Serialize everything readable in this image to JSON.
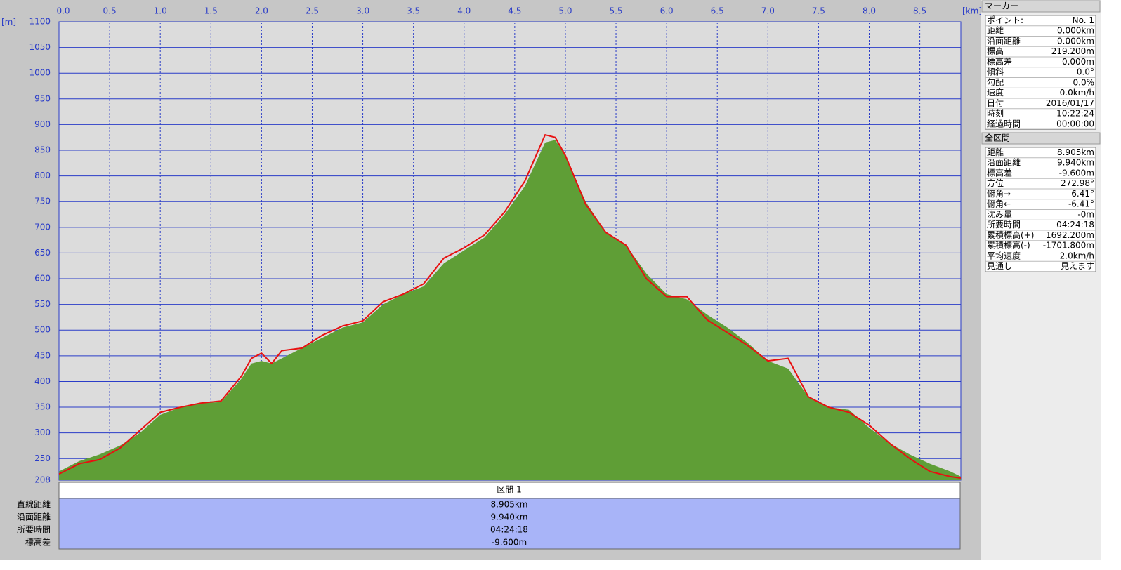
{
  "chart_data": {
    "type": "line",
    "y_label": "[m]",
    "x_label": "[km]",
    "x": [
      0,
      0.2,
      0.4,
      0.6,
      0.8,
      1.0,
      1.2,
      1.4,
      1.6,
      1.8,
      1.9,
      2.0,
      2.1,
      2.2,
      2.4,
      2.6,
      2.8,
      3.0,
      3.2,
      3.4,
      3.6,
      3.8,
      4.0,
      4.2,
      4.4,
      4.6,
      4.8,
      4.9,
      5.0,
      5.2,
      5.4,
      5.6,
      5.8,
      6.0,
      6.2,
      6.4,
      6.6,
      6.8,
      7.0,
      7.2,
      7.4,
      7.6,
      7.8,
      8.0,
      8.2,
      8.4,
      8.6,
      8.8,
      8.905
    ],
    "series": [
      {
        "style": "area",
        "color": "#5f9e36",
        "values": [
          225,
          245,
          258,
          275,
          300,
          335,
          350,
          358,
          360,
          405,
          435,
          440,
          435,
          445,
          465,
          485,
          505,
          515,
          550,
          570,
          585,
          630,
          655,
          680,
          725,
          780,
          865,
          870,
          840,
          750,
          690,
          665,
          610,
          570,
          560,
          530,
          505,
          475,
          440,
          425,
          370,
          350,
          345,
          310,
          280,
          258,
          240,
          225,
          215
        ]
      },
      {
        "style": "line",
        "color": "#e81010",
        "values": [
          220,
          240,
          248,
          270,
          305,
          340,
          350,
          358,
          362,
          410,
          445,
          455,
          435,
          460,
          465,
          490,
          508,
          518,
          555,
          570,
          590,
          640,
          660,
          685,
          730,
          790,
          880,
          875,
          840,
          745,
          690,
          665,
          600,
          565,
          565,
          520,
          495,
          470,
          440,
          445,
          370,
          350,
          340,
          315,
          280,
          250,
          225,
          215,
          212
        ]
      }
    ],
    "xlim": [
      0,
      8.905
    ],
    "xticks": [
      {
        "value": 0,
        "label": "0.0"
      },
      0.5,
      {
        "value": 1,
        "label": "1.0"
      },
      1.5,
      {
        "value": 2,
        "label": "2.0"
      },
      2.5,
      {
        "value": 3,
        "label": "3.0"
      },
      3.5,
      {
        "value": 4,
        "label": "4.0"
      },
      4.5,
      {
        "value": 5,
        "label": "5.0"
      },
      5.5,
      {
        "value": 6,
        "label": "6.0"
      },
      6.5,
      {
        "value": 7,
        "label": "7.0"
      },
      7.5,
      {
        "value": 8,
        "label": "8.0"
      },
      8.5
    ],
    "ylim": [
      208,
      1100
    ],
    "yticks": [
      208,
      250,
      300,
      350,
      400,
      450,
      500,
      550,
      600,
      650,
      700,
      750,
      800,
      850,
      900,
      950,
      1000,
      1050,
      1100
    ],
    "grid": true
  },
  "section": {
    "header": "区間 1",
    "rows": [
      [
        "直線距離",
        "8.905km"
      ],
      [
        "沿面距離",
        "9.940km"
      ],
      [
        "所要時間",
        "04:24:18"
      ],
      [
        "標高差",
        "-9.600m"
      ]
    ]
  },
  "marker": {
    "title": "マーカー",
    "rows": [
      [
        "ポイント:",
        "No. 1"
      ],
      [
        "距離",
        "0.000km"
      ],
      [
        "沿面距離",
        "0.000km"
      ],
      [
        "標高",
        "219.200m"
      ],
      [
        "標高差",
        "0.000m"
      ],
      [
        "傾斜",
        "0.0°"
      ],
      [
        "勾配",
        "0.0%"
      ],
      [
        "速度",
        "0.0km/h"
      ],
      [
        "日付",
        "2016/01/17"
      ],
      [
        "時刻",
        "10:22:24"
      ],
      [
        "経過時間",
        "00:00:00"
      ]
    ]
  },
  "total": {
    "title": "全区間",
    "rows": [
      [
        "距離",
        "8.905km"
      ],
      [
        "沿面距離",
        "9.940km"
      ],
      [
        "標高差",
        "-9.600m"
      ],
      [
        "方位",
        "272.98°"
      ],
      [
        "俯角→",
        "6.41°"
      ],
      [
        "俯角←",
        "-6.41°"
      ],
      [
        "沈み量",
        "-0m"
      ],
      [
        "所要時間",
        "04:24:18"
      ],
      [
        "累積標高(+)",
        "1692.200m"
      ],
      [
        "累積標高(-)",
        "-1701.800m"
      ],
      [
        "平均速度",
        "2.0km/h"
      ],
      [
        "見通し",
        "見えます"
      ]
    ]
  }
}
